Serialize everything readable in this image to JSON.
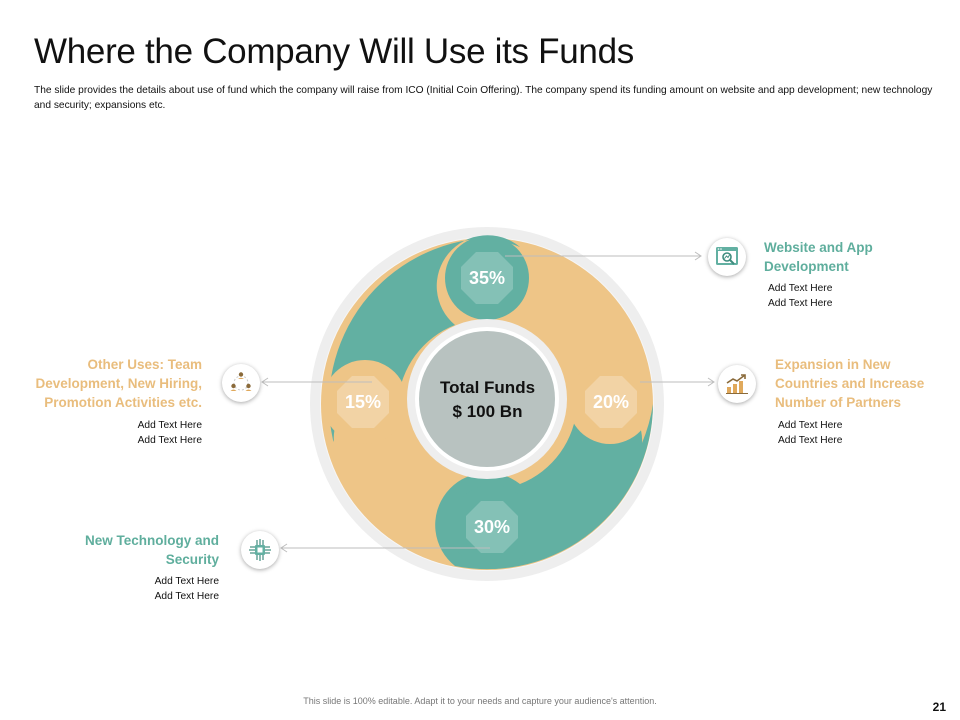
{
  "slide": {
    "title": "Where the Company Will Use its Funds",
    "subtitle": "The slide provides the details about use of fund which the company will raise from ICO (Initial Coin Offering). The company spend its funding amount on website and app development; new technology and security; expansions etc.",
    "footer": "This slide is 100% editable. Adapt it to your needs and capture your audience's attention.",
    "page_number": "21"
  },
  "center": {
    "line1": "Total Funds",
    "line2": "$ 100 Bn"
  },
  "colors": {
    "green": "#62b0a2",
    "tan": "#eec587",
    "ring": "#efefef",
    "hub": "#b8c2c0"
  },
  "segments": [
    {
      "percent": "35%",
      "label": "Website and App Development",
      "line1": "Website and App",
      "line2": "Development",
      "text1": "Add Text Here",
      "text2": "Add Text Here",
      "icon": "web-analytics-icon",
      "color": "green"
    },
    {
      "percent": "20%",
      "label": "Expansion in New Countries and Increase Number of Partners",
      "line1": "Expansion in New",
      "line2": "Countries and Increase",
      "line3": "Number of Partners",
      "text1": "Add Text Here",
      "text2": "Add Text Here",
      "icon": "growth-chart-icon",
      "color": "tan"
    },
    {
      "percent": "30%",
      "label": "New Technology and Security",
      "line1": "New Technology and",
      "line2": "Security",
      "text1": "Add Text Here",
      "text2": "Add Text Here",
      "icon": "circuit-chip-icon",
      "color": "green"
    },
    {
      "percent": "15%",
      "label": "Other Uses: Team Development, New Hiring, Promotion Activities etc.",
      "line1": "Other Uses: Team",
      "line2": "Development, New Hiring,",
      "line3": "Promotion Activities etc.",
      "text1": "Add Text Here",
      "text2": "Add Text Here",
      "icon": "team-network-icon",
      "color": "tan"
    }
  ]
}
